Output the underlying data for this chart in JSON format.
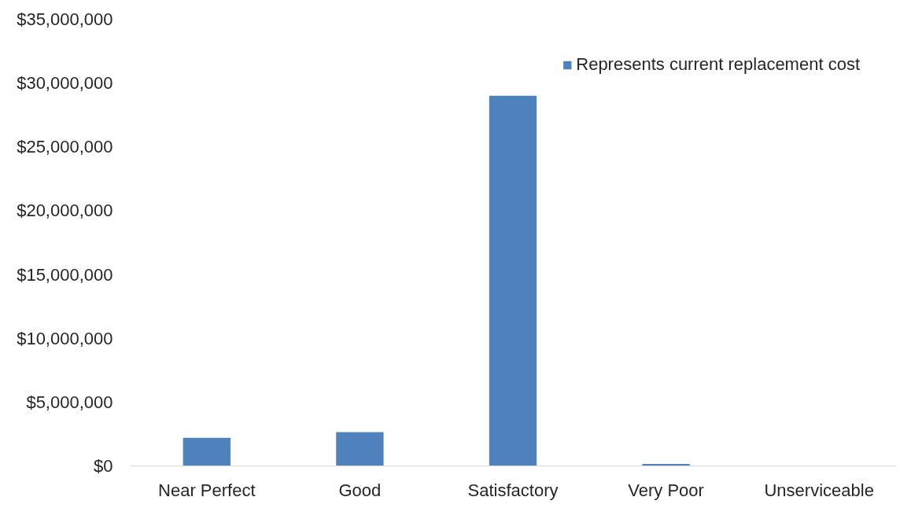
{
  "chart_data": {
    "type": "bar",
    "categories": [
      "Near Perfect",
      "Good",
      "Satisfactory",
      "Very Poor",
      "Unserviceable"
    ],
    "series": [
      {
        "name": "Represents current replacement cost",
        "color": "#4f81bd",
        "values": [
          2200000,
          2650000,
          29000000,
          150000,
          0
        ]
      }
    ],
    "ylim": [
      0,
      35000000
    ],
    "yticks": [
      {
        "value": 0,
        "label": "$0"
      },
      {
        "value": 5000000,
        "label": "$5,000,000"
      },
      {
        "value": 10000000,
        "label": "$10,000,000"
      },
      {
        "value": 15000000,
        "label": "$15,000,000"
      },
      {
        "value": 20000000,
        "label": "$20,000,000"
      },
      {
        "value": 25000000,
        "label": "$25,000,000"
      },
      {
        "value": 30000000,
        "label": "$30,000,000"
      },
      {
        "value": 35000000,
        "label": "$35,000,000"
      }
    ],
    "legend": "top right"
  }
}
